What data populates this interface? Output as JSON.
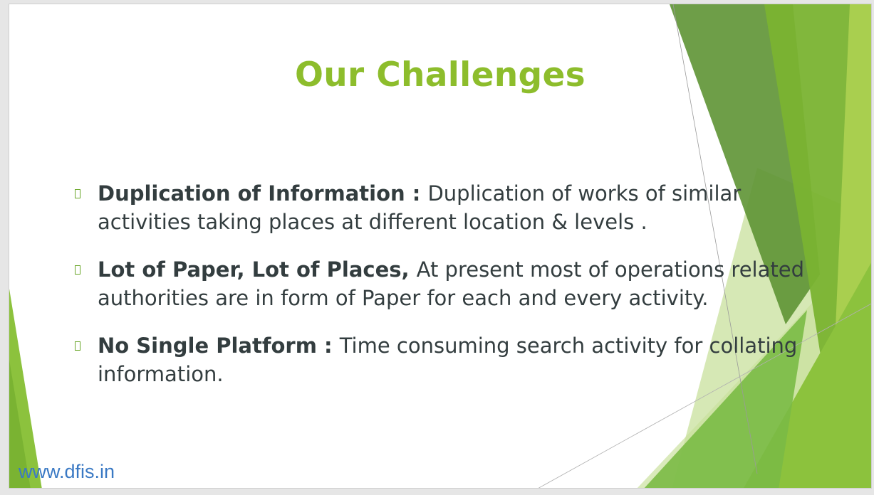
{
  "slide": {
    "title": "Our Challenges",
    "bullets": [
      {
        "bold": "Duplication of Information : ",
        "text": "Duplication of works of similar activities taking places at different location & levels ."
      },
      {
        "bold": "Lot of Paper, Lot of Places, ",
        "text": "At present most of operations related authorities  are in form of Paper for each and every activity."
      },
      {
        "bold": "No Single Platform  : ",
        "text": "Time consuming search activity for collating information."
      }
    ],
    "footer_url": "www.dfis.in"
  },
  "colors": {
    "title": "#8dbd2c",
    "bullet_marker": "#6aa629",
    "body_text": "#333d3f",
    "url": "#3a79c4",
    "green_dark": "#5b8f2f",
    "green_mid": "#7db83a",
    "green_light": "#a6cf5a",
    "green_pale": "#d6e8b4"
  },
  "icons": {
    "bullet": "square-bullet-icon"
  }
}
